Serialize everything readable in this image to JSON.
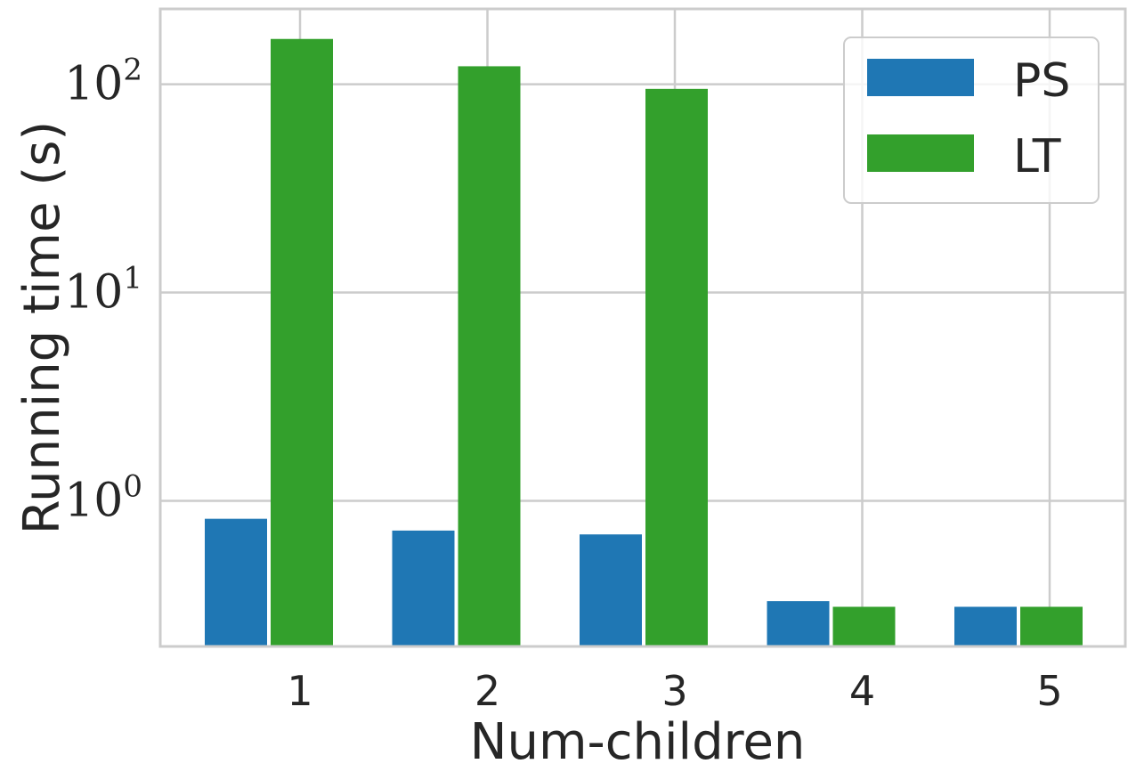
{
  "chart_data": {
    "type": "bar",
    "title": "",
    "xlabel": "Num-children",
    "ylabel": "Running time (s)",
    "yscale": "log",
    "ylim": [
      0.2,
      230
    ],
    "grid": true,
    "legend_position": "top-right",
    "categories": [
      "1",
      "2",
      "3",
      "4",
      "5"
    ],
    "series": [
      {
        "name": "PS",
        "color": "#1f77b4",
        "values": [
          0.82,
          0.72,
          0.69,
          0.33,
          0.31
        ]
      },
      {
        "name": "LT",
        "color": "#33a02c",
        "values": [
          165,
          122,
          95,
          0.31,
          0.31
        ]
      }
    ],
    "y_ticks": [
      {
        "value": 1,
        "base": "10",
        "exp": "0"
      },
      {
        "value": 10,
        "base": "10",
        "exp": "1"
      },
      {
        "value": 100,
        "base": "10",
        "exp": "2"
      }
    ],
    "colors": {
      "grid": "#cccccc",
      "spine": "#cccccc",
      "text": "#262626",
      "background": "#ffffff"
    }
  }
}
